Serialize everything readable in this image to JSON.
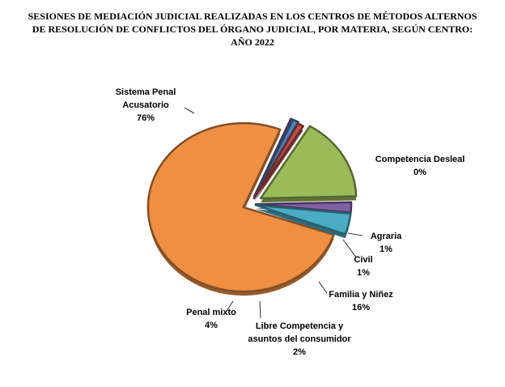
{
  "chart_data": {
    "type": "pie",
    "title_lines": [
      "SESIONES DE MEDIACIÓN  JUDICIAL  REALIZADAS  EN LOS CENTROS DE MÉTODOS ALTERNOS",
      "DE RESOLUCIÓN DE CONFLICTOS DEL ÓRGANO JUDICIAL,  POR MATERIA,  SEGÚN CENTRO:",
      "AÑO 2022"
    ],
    "exploded": true,
    "slices": [
      {
        "label_lines": [
          "Sistema Penal",
          "Acusatorio"
        ],
        "percent_label": "76%",
        "value": 76,
        "color": "#EE8F43"
      },
      {
        "label_lines": [
          "Competencia Desleal"
        ],
        "percent_label": "0%",
        "value": 0,
        "color": "#8064A2"
      },
      {
        "label_lines": [
          "Agraria"
        ],
        "percent_label": "1%",
        "value": 1,
        "color": "#4F81BD"
      },
      {
        "label_lines": [
          "Civil"
        ],
        "percent_label": "1%",
        "value": 1,
        "color": "#C0504D"
      },
      {
        "label_lines": [
          "Familia  y Niñez"
        ],
        "percent_label": "16%",
        "value": 16,
        "color": "#9BBB59"
      },
      {
        "label_lines": [
          "Libre Competencia y",
          "asuntos del consumidor"
        ],
        "percent_label": "2%",
        "value": 2,
        "color": "#7F5FA5"
      },
      {
        "label_lines": [
          "Penal mixto"
        ],
        "percent_label": "4%",
        "value": 4,
        "color": "#4BACC6"
      }
    ]
  }
}
